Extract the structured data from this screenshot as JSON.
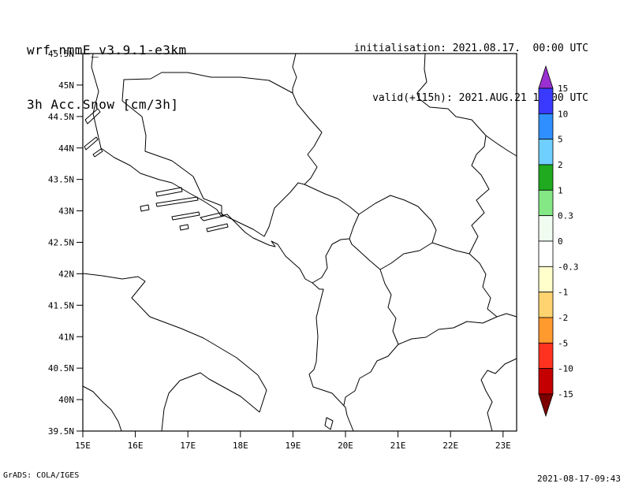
{
  "header": {
    "model_line": "wrf-nmmE_v3.9.1-e3km",
    "variable_line": "3h Acc.Snow [cm/3h]",
    "init_line": "initialisation: 2021.08.17.  00:00 UTC",
    "valid_line": "valid(+115h): 2021.AUG.21 19:00 UTC"
  },
  "footer": {
    "grads_credit": "GrADS: COLA/IGES",
    "timestamp": "2021-08-17-09:43"
  },
  "chart_data": {
    "type": "map",
    "projection": "lat-lon",
    "region": "Adriatic Sea / Balkans",
    "title": "3h Acc.Snow [cm/3h]",
    "x_axis": {
      "ticks": [
        "15E",
        "16E",
        "17E",
        "18E",
        "19E",
        "20E",
        "21E",
        "22E",
        "23E"
      ],
      "lon_values": [
        15,
        16,
        17,
        18,
        19,
        20,
        21,
        22,
        23
      ]
    },
    "y_axis": {
      "ticks": [
        "45.5N",
        "45N",
        "44.5N",
        "44N",
        "43.5N",
        "43N",
        "42.5N",
        "42N",
        "41.5N",
        "41N",
        "40.5N",
        "40N",
        "39.5N"
      ],
      "lat_values": [
        45.5,
        45,
        44.5,
        44,
        43.5,
        43,
        42.5,
        42,
        41.5,
        41,
        40.5,
        40,
        39.5
      ]
    },
    "shading_visible": false,
    "colorbar": {
      "units": "cm/3h",
      "boundary_labels": [
        "15",
        "10",
        "5",
        "2",
        "1",
        "0.3",
        "0",
        "-0.3",
        "-1",
        "-2",
        "-5",
        "-10",
        "-15"
      ],
      "arrow_top_color": "#9a30d0",
      "arrow_bottom_color": "#7c0000",
      "segment_colors_top_to_bottom": [
        "#3a3aff",
        "#2f8fff",
        "#6fcfff",
        "#1faa1f",
        "#84e884",
        "#f0fcf0",
        "#ffffff",
        "#ffffcc",
        "#ffd470",
        "#ff9a2e",
        "#ff3220",
        "#c40000"
      ]
    }
  }
}
